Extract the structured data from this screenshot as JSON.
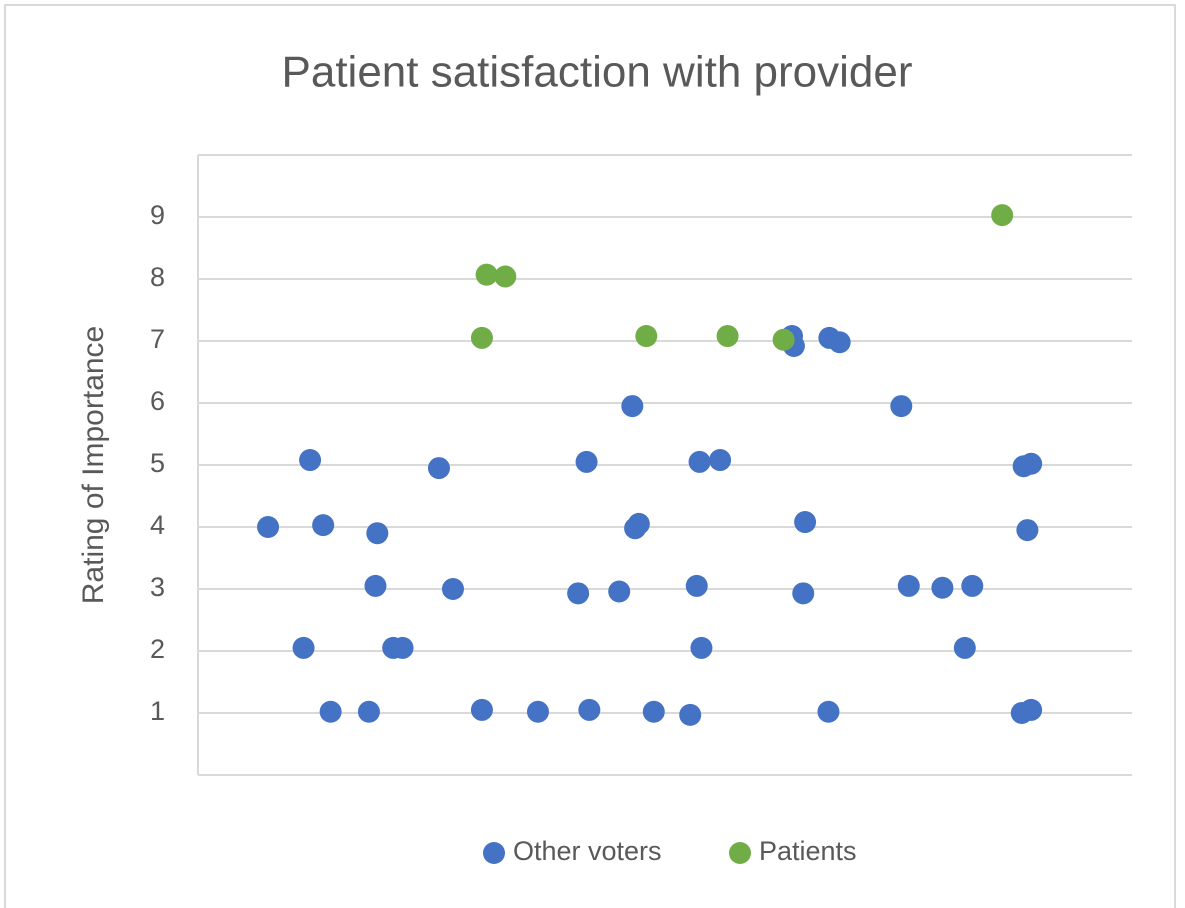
{
  "chart_data": {
    "type": "scatter",
    "title": "Patient satisfaction with provider",
    "y_label": "Rating of Importance",
    "xlim": [
      0,
      100
    ],
    "ylim": [
      0,
      10
    ],
    "yticks": [
      1,
      2,
      3,
      4,
      5,
      6,
      7,
      8,
      9
    ],
    "grid": true,
    "legend": "bottom",
    "series": [
      {
        "name": "Other voters",
        "color": "#4472c4",
        "x": [
          7.5,
          12.0,
          13.4,
          19.2,
          19.0,
          11.3,
          14.2,
          18.3,
          20.9,
          21.9,
          25.8,
          27.3,
          30.4,
          36.4,
          41.6,
          41.9,
          40.7,
          45.1,
          46.5,
          46.8,
          47.2,
          48.8,
          52.7,
          53.4,
          53.7,
          55.9,
          53.9,
          63.6,
          63.8,
          65.0,
          64.8,
          67.6,
          68.7,
          67.5,
          75.3,
          76.1,
          79.7,
          82.9,
          82.1,
          88.4,
          89.2,
          88.8,
          88.2,
          89.2
        ],
        "values": [
          4,
          5.08,
          4.03,
          3.9,
          3.05,
          2.05,
          1.02,
          1.02,
          2.05,
          2.05,
          4.95,
          3.0,
          1.05,
          1.02,
          5.05,
          1.05,
          2.93,
          2.96,
          5.95,
          3.98,
          4.05,
          1.02,
          0.97,
          3.05,
          5.05,
          5.08,
          2.05,
          7.08,
          6.92,
          4.08,
          2.93,
          7.05,
          6.98,
          1.02,
          5.95,
          3.05,
          3.02,
          3.05,
          2.05,
          4.98,
          5.02,
          3.95,
          1.0,
          1.05
        ]
      },
      {
        "name": "Patients",
        "color": "#70ad47",
        "x": [
          30.9,
          32.9,
          30.4,
          48.0,
          56.7,
          62.7,
          86.1
        ],
        "values": [
          8.07,
          8.04,
          7.05,
          7.08,
          7.08,
          7.02,
          9.03
        ]
      }
    ]
  }
}
